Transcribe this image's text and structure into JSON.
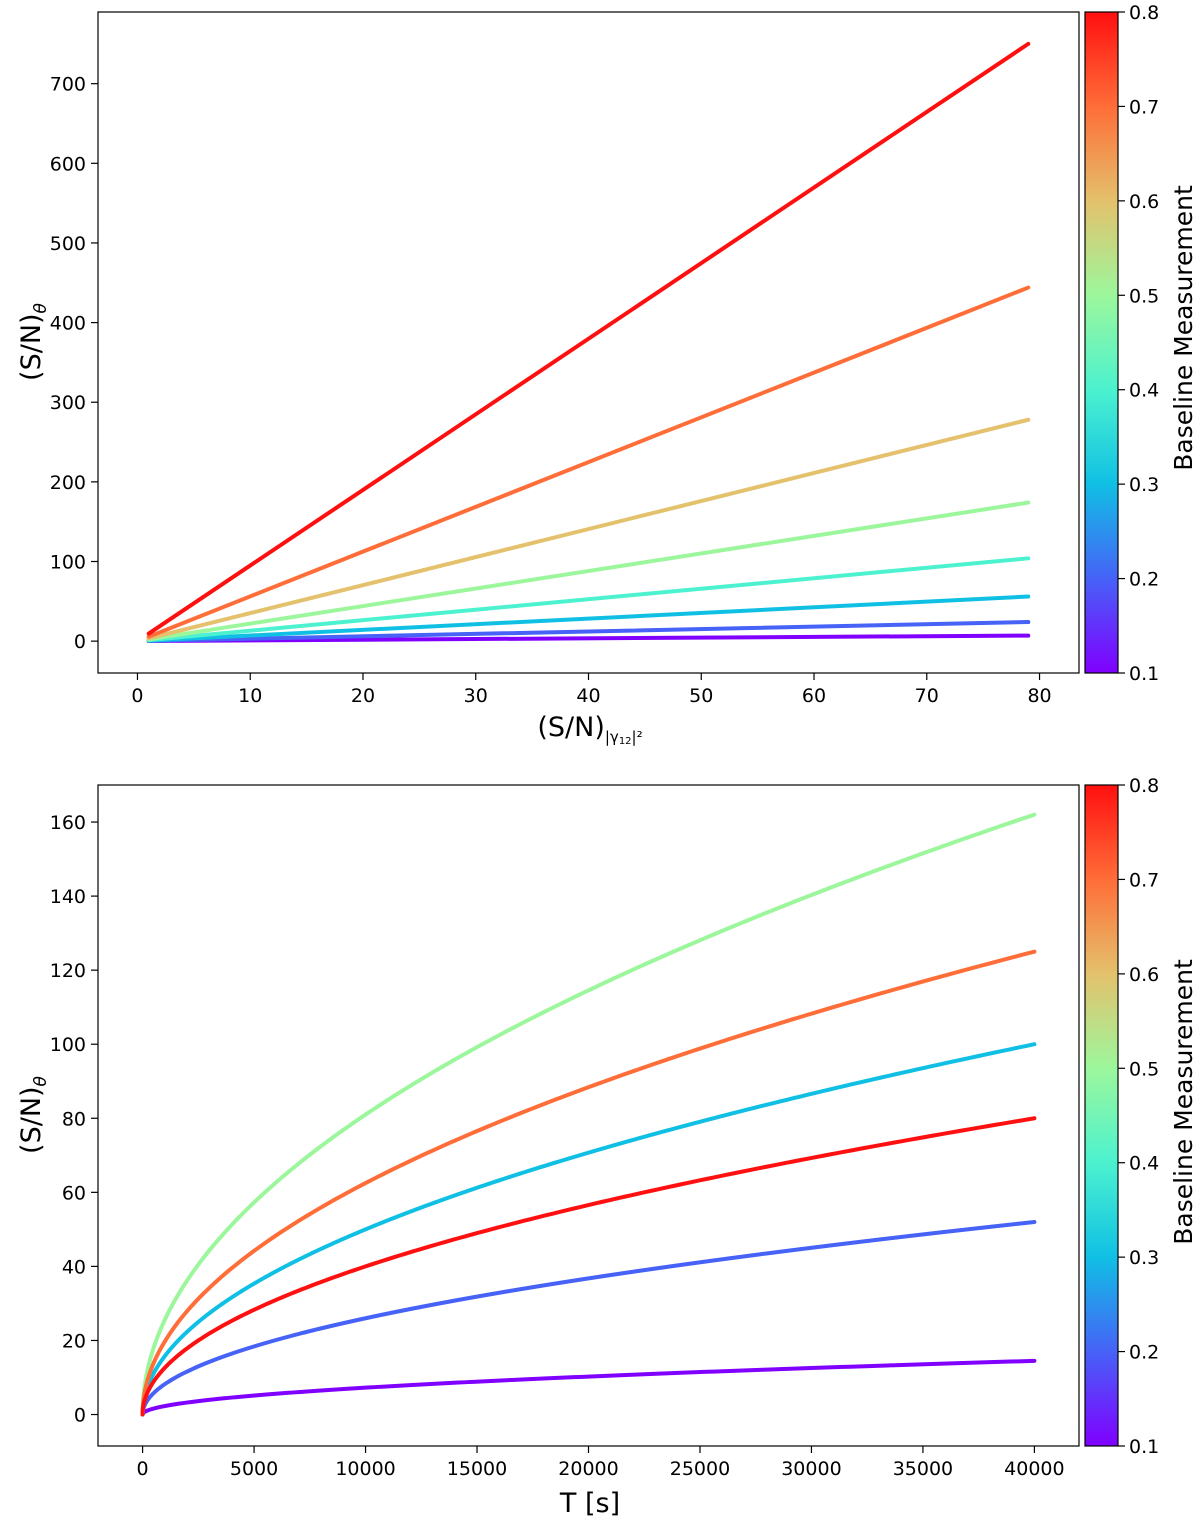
{
  "chart_data": [
    {
      "type": "line",
      "xlabel": "(S/N)|γ12|²",
      "xlabel_parts": {
        "main": "(S/N)",
        "sub": "|γ",
        "subsub": "12",
        "tail": "|²"
      },
      "ylabel": "(S/N)θ",
      "ylabel_parts": {
        "main": "(S/N)",
        "sub": "θ"
      },
      "xlim": [
        -3.5,
        83.5
      ],
      "ylim": [
        -40,
        790
      ],
      "xticks": [
        0,
        10,
        20,
        30,
        40,
        50,
        60,
        70,
        80
      ],
      "yticks": [
        0,
        100,
        200,
        300,
        400,
        500,
        600,
        700
      ],
      "colorbar": {
        "label": "Baseline Measurement",
        "min": 0.1,
        "max": 0.8,
        "ticks": [
          0.1,
          0.2,
          0.3,
          0.4,
          0.5,
          0.6,
          0.7,
          0.8
        ]
      },
      "series": [
        {
          "name": "b=0.1",
          "color": "#8000ff",
          "x_start": 1,
          "x_end": 79,
          "y_start": 0.1,
          "y_end": 7
        },
        {
          "name": "b=0.2",
          "color": "#4662f7",
          "x_start": 1,
          "x_end": 79,
          "y_start": 0.3,
          "y_end": 24
        },
        {
          "name": "b=0.3",
          "color": "#10c0e4",
          "x_start": 1,
          "x_end": 79,
          "y_start": 0.7,
          "y_end": 56
        },
        {
          "name": "b=0.4",
          "color": "#4cf2cf",
          "x_start": 1,
          "x_end": 79,
          "y_start": 1.3,
          "y_end": 104
        },
        {
          "name": "b=0.5",
          "color": "#9cf79c",
          "x_start": 1,
          "x_end": 79,
          "y_start": 2.2,
          "y_end": 174
        },
        {
          "name": "b=0.6",
          "color": "#e4c16c",
          "x_start": 1,
          "x_end": 79,
          "y_start": 3.5,
          "y_end": 278
        },
        {
          "name": "b=0.7",
          "color": "#ff6d38",
          "x_start": 1,
          "x_end": 79,
          "y_start": 5.6,
          "y_end": 444
        },
        {
          "name": "b=0.8",
          "color": "#ff1010",
          "x_start": 1,
          "x_end": 79,
          "y_start": 9.5,
          "y_end": 750
        }
      ]
    },
    {
      "type": "line",
      "xlabel": "T [s]",
      "ylabel": "(S/N)θ",
      "ylabel_parts": {
        "main": "(S/N)",
        "sub": "θ"
      },
      "xlim": [
        -2000,
        42000
      ],
      "ylim": [
        -8.5,
        170
      ],
      "xticks": [
        0,
        5000,
        10000,
        15000,
        20000,
        25000,
        30000,
        35000,
        40000
      ],
      "yticks": [
        0,
        20,
        40,
        60,
        80,
        100,
        120,
        140,
        160
      ],
      "curve_model": "y = y_end * sqrt(T / 40000)",
      "colorbar": {
        "label": "Baseline Measurement",
        "min": 0.1,
        "max": 0.8,
        "ticks": [
          0.1,
          0.2,
          0.3,
          0.4,
          0.5,
          0.6,
          0.7,
          0.8
        ]
      },
      "series": [
        {
          "name": "b=0.1",
          "color": "#8000ff",
          "x_end": 40000,
          "y_end": 14.5
        },
        {
          "name": "b=0.2",
          "color": "#4662f7",
          "x_end": 40000,
          "y_end": 52
        },
        {
          "name": "b=0.3",
          "color": "#10c0e4",
          "x_end": 40000,
          "y_end": 100
        },
        {
          "name": "b=0.5",
          "color": "#9cf79c",
          "x_end": 40000,
          "y_end": 162
        },
        {
          "name": "b=0.7",
          "color": "#ff6d38",
          "x_end": 40000,
          "y_end": 125
        },
        {
          "name": "b=0.8",
          "color": "#ff1010",
          "x_end": 40000,
          "y_end": 80
        }
      ]
    }
  ]
}
